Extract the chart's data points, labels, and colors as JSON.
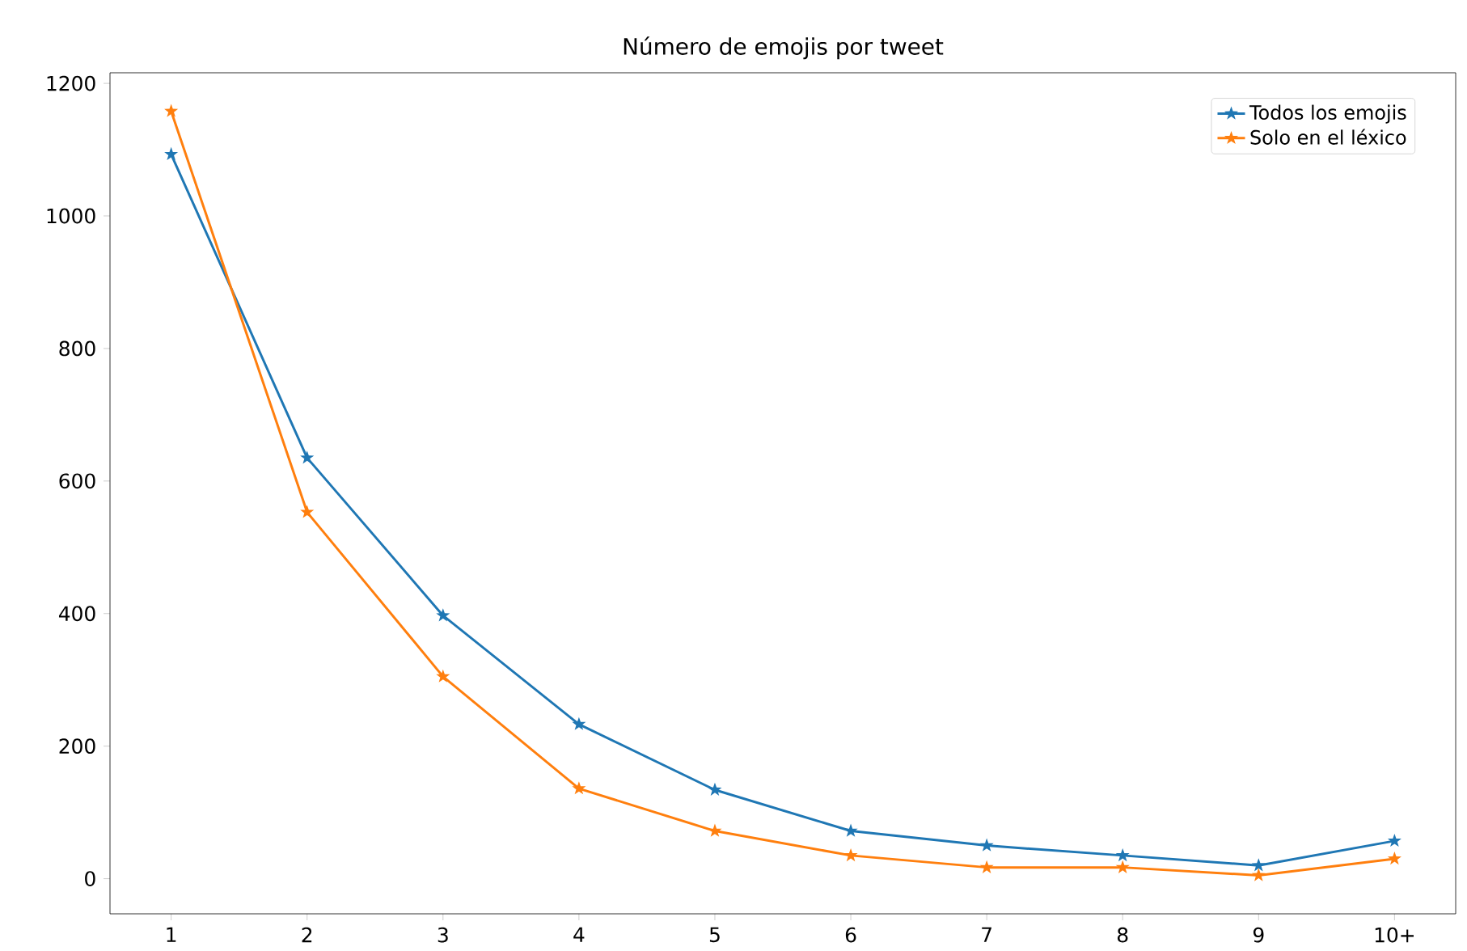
{
  "chart_data": {
    "type": "line",
    "title": "Número de emojis por tweet",
    "categories": [
      "1",
      "2",
      "3",
      "4",
      "5",
      "6",
      "7",
      "8",
      "9",
      "10+"
    ],
    "series": [
      {
        "name": "Todos los emojis",
        "color": "#1f77b4",
        "values": [
          1093,
          635,
          397,
          233,
          134,
          72,
          50,
          35,
          20,
          57
        ]
      },
      {
        "name": "Solo en el léxico",
        "color": "#ff7f0e",
        "values": [
          1158,
          553,
          305,
          136,
          72,
          35,
          17,
          17,
          5,
          30
        ]
      }
    ],
    "ylim": [
      -53,
      1216
    ],
    "yticks": [
      0,
      200,
      400,
      600,
      800,
      1000,
      1200
    ],
    "grid": false,
    "legend": "top right",
    "marker": "star",
    "line_style": "solid"
  }
}
